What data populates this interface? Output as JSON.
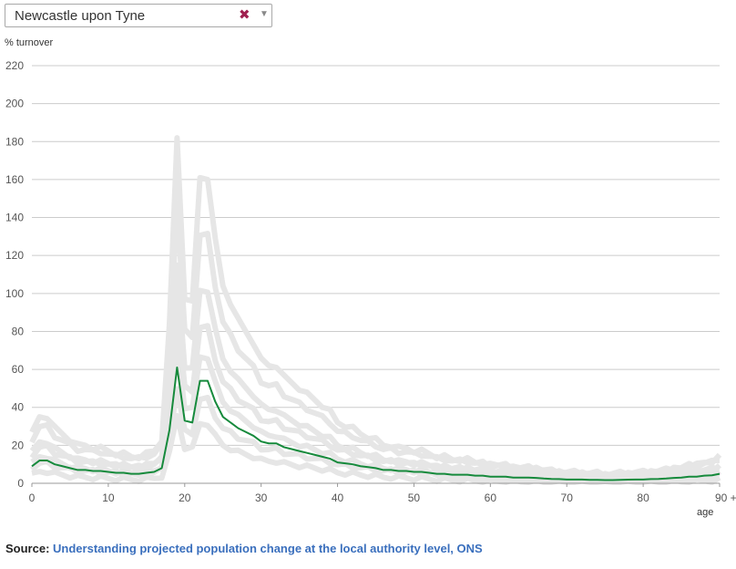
{
  "selector": {
    "value": "Newcastle upon Tyne"
  },
  "source": {
    "label": "Source:",
    "link_text": "Understanding projected population change at the local authority level, ONS"
  },
  "colors": {
    "highlight": "#168a3c",
    "background_lines": "#e6e6e6",
    "grid": "#cccccc",
    "axis_text": "#555555",
    "link": "#3a6fbd"
  },
  "chart_data": {
    "type": "line",
    "ylabel": "% turnover",
    "xlabel": "age",
    "ylim": [
      0,
      220
    ],
    "xlim": [
      0,
      90
    ],
    "y_ticks": [
      0,
      20,
      40,
      60,
      80,
      100,
      120,
      140,
      160,
      180,
      200,
      220
    ],
    "x_ticks": [
      0,
      10,
      20,
      30,
      40,
      50,
      60,
      70,
      80,
      90
    ],
    "x_tick_labels": [
      "0",
      "10",
      "20",
      "30",
      "40",
      "50",
      "60",
      "70",
      "80",
      "90 +"
    ],
    "grid": "horizontal",
    "series": [
      {
        "x": [
          0,
          1,
          2,
          3,
          4,
          5,
          6,
          7,
          8,
          9,
          10,
          11,
          12,
          13,
          14,
          15,
          16,
          17,
          18,
          19,
          20,
          21,
          22,
          23,
          24,
          25,
          26,
          27,
          28,
          29,
          30,
          31,
          32,
          33,
          34,
          35,
          36,
          37,
          38,
          39,
          40,
          41,
          42,
          43,
          44,
          45,
          46,
          47,
          48,
          49,
          50,
          51,
          52,
          53,
          54,
          55,
          56,
          57,
          58,
          59,
          60,
          61,
          62,
          63,
          64,
          65,
          66,
          67,
          68,
          69,
          70,
          71,
          72,
          73,
          74,
          75,
          76,
          77,
          78,
          79,
          80,
          81,
          82,
          83,
          84,
          85,
          86,
          87,
          88,
          89,
          90
        ],
        "values": [
          9,
          12,
          12,
          10,
          9,
          8,
          7,
          7,
          6.5,
          6.5,
          6,
          5.5,
          5.5,
          5,
          5,
          5.5,
          6,
          8,
          28,
          61,
          33,
          32,
          54,
          54,
          43,
          35,
          32,
          29,
          27,
          25,
          22,
          21,
          21,
          19,
          18,
          17,
          16,
          15,
          14,
          13,
          11,
          10.5,
          10,
          9,
          8.5,
          8,
          7,
          7,
          6.5,
          6.5,
          6,
          6,
          5.5,
          5,
          5,
          4.5,
          4.5,
          4.5,
          4,
          4,
          3.5,
          3.5,
          3.5,
          3,
          3,
          3,
          2.8,
          2.5,
          2.3,
          2.2,
          2,
          2,
          2,
          1.8,
          1.8,
          1.7,
          1.7,
          1.8,
          1.9,
          2,
          2,
          2.2,
          2.3,
          2.5,
          2.8,
          3,
          3.5,
          3.5,
          4,
          4.2,
          5
        ]
      }
    ]
  }
}
